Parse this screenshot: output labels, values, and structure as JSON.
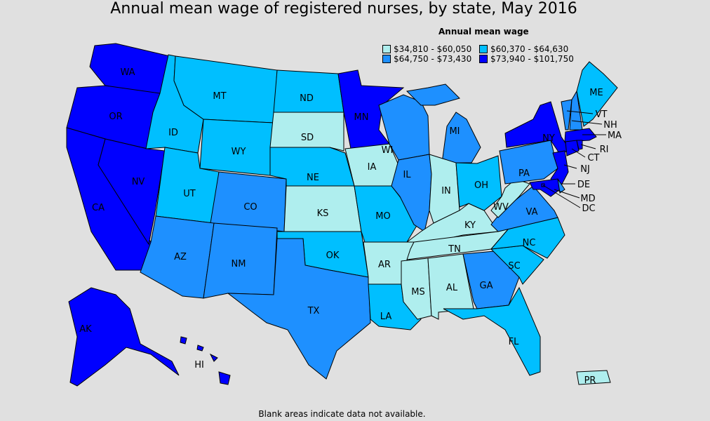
{
  "title": "Annual mean wage of registered nurses, by state, May 2016",
  "footer": "Blank areas indicate data not available.",
  "legend": {
    "title": "Annual mean wage",
    "classes": [
      {
        "label": "$34,810 - $60,050",
        "color": "#afeeee"
      },
      {
        "label": "$60,370 - $64,630",
        "color": "#00bfff"
      },
      {
        "label": "$64,750 - $73,430",
        "color": "#1e90ff"
      },
      {
        "label": "$73,940 - $101,750",
        "color": "#0000ff"
      }
    ]
  },
  "states": {
    "WA": 3,
    "OR": 3,
    "CA": 3,
    "NV": 3,
    "AK": 3,
    "HI": 3,
    "MN": 3,
    "NY": 3,
    "MA": 3,
    "RI": 3,
    "CT": 3,
    "NJ": 3,
    "MD": 3,
    "DC": 3,
    "AZ": 2,
    "NM": 2,
    "CO": 2,
    "TX": 2,
    "IL": 2,
    "WI": 2,
    "MI": 2,
    "PA": 2,
    "VT": 2,
    "NH": 2,
    "VA": 2,
    "GA": 2,
    "DE": 2,
    "ID": 1,
    "MT": 1,
    "ND": 1,
    "WY": 1,
    "UT": 1,
    "NE": 1,
    "MO": 1,
    "OK": 1,
    "OH": 1,
    "NC": 1,
    "SC": 1,
    "FL": 1,
    "LA": 1,
    "ME": 1,
    "SD": 0,
    "KS": 0,
    "IA": 0,
    "IN": 0,
    "KY": 0,
    "WV": 0,
    "TN": 0,
    "AR": 0,
    "MS": 0,
    "AL": 0,
    "PR": 0
  }
}
